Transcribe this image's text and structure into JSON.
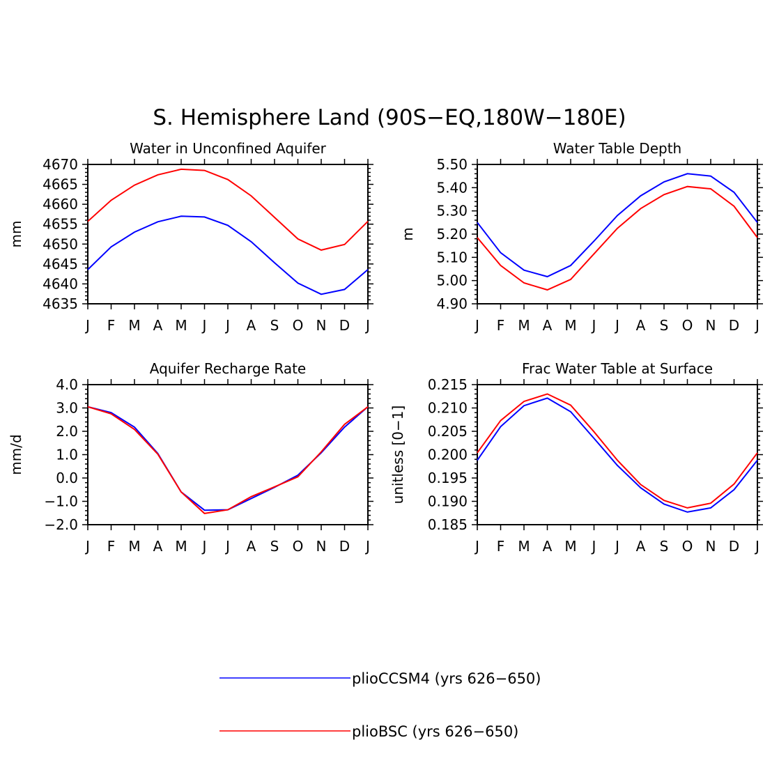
{
  "page_title": "S. Hemisphere Land (90S−EQ,180W−180E)",
  "legend": [
    {
      "label": "plioCCSM4 (yrs 626−650)",
      "color": "#0000ff"
    },
    {
      "label": "plioBSC (yrs 626−650)",
      "color": "#ff0000"
    }
  ],
  "chart_data": [
    {
      "type": "line",
      "title": "Water in Unconfined Aquifer",
      "ylabel": "mm",
      "xlabel": "",
      "categories": [
        "J",
        "F",
        "M",
        "A",
        "M",
        "J",
        "J",
        "A",
        "S",
        "O",
        "N",
        "D",
        "J"
      ],
      "ylim": [
        4635,
        4670
      ],
      "yticks": [
        4635,
        4640,
        4645,
        4650,
        4655,
        4660,
        4665,
        4670
      ],
      "ytick_labels": [
        "4635",
        "4640",
        "4645",
        "4650",
        "4655",
        "4660",
        "4665",
        "4670"
      ],
      "grid": false,
      "series": [
        {
          "color": "#0000ff",
          "values": [
            4643.6,
            4649.3,
            4653.0,
            4655.6,
            4657.0,
            4656.8,
            4654.7,
            4650.6,
            4645.3,
            4640.2,
            4637.4,
            4638.6,
            4643.6
          ]
        },
        {
          "color": "#ff0000",
          "values": [
            4655.7,
            4661.0,
            4664.8,
            4667.4,
            4668.8,
            4668.5,
            4666.2,
            4662.1,
            4656.7,
            4651.3,
            4648.5,
            4649.9,
            4655.7
          ]
        }
      ]
    },
    {
      "type": "line",
      "title": "Water Table Depth",
      "ylabel": "m",
      "xlabel": "",
      "categories": [
        "J",
        "F",
        "M",
        "A",
        "M",
        "J",
        "J",
        "A",
        "S",
        "O",
        "N",
        "D",
        "J"
      ],
      "ylim": [
        4.9,
        5.5
      ],
      "yticks": [
        4.9,
        5.0,
        5.1,
        5.2,
        5.3,
        5.4,
        5.5
      ],
      "ytick_labels": [
        "4.90",
        "5.00",
        "5.10",
        "5.20",
        "5.30",
        "5.40",
        "5.50"
      ],
      "grid": false,
      "series": [
        {
          "color": "#0000ff",
          "values": [
            5.25,
            5.12,
            5.045,
            5.017,
            5.065,
            5.17,
            5.28,
            5.365,
            5.425,
            5.46,
            5.45,
            5.38,
            5.25
          ]
        },
        {
          "color": "#ff0000",
          "values": [
            5.185,
            5.065,
            4.99,
            4.96,
            5.005,
            5.115,
            5.225,
            5.31,
            5.37,
            5.405,
            5.395,
            5.32,
            5.185
          ]
        }
      ]
    },
    {
      "type": "line",
      "title": "Aquifer Recharge Rate",
      "ylabel": "mm/d",
      "xlabel": "",
      "categories": [
        "J",
        "F",
        "M",
        "A",
        "M",
        "J",
        "J",
        "A",
        "S",
        "O",
        "N",
        "D",
        "J"
      ],
      "ylim": [
        -2.0,
        4.0
      ],
      "yticks": [
        -2.0,
        -1.0,
        0.0,
        1.0,
        2.0,
        3.0,
        4.0
      ],
      "ytick_labels": [
        "−2.0",
        "−1.0",
        "0.0",
        "1.0",
        "2.0",
        "3.0",
        "4.0"
      ],
      "grid": false,
      "series": [
        {
          "color": "#0000ff",
          "values": [
            3.05,
            2.8,
            2.18,
            1.05,
            -0.6,
            -1.38,
            -1.36,
            -0.88,
            -0.4,
            0.12,
            1.08,
            2.18,
            3.05
          ]
        },
        {
          "color": "#ff0000",
          "values": [
            3.05,
            2.75,
            2.08,
            1.02,
            -0.6,
            -1.52,
            -1.36,
            -0.8,
            -0.38,
            0.05,
            1.12,
            2.3,
            3.05
          ]
        }
      ]
    },
    {
      "type": "line",
      "title": "Frac Water Table at Surface",
      "ylabel": "unitless [0−1]",
      "xlabel": "",
      "categories": [
        "J",
        "F",
        "M",
        "A",
        "M",
        "J",
        "J",
        "A",
        "S",
        "O",
        "N",
        "D",
        "J"
      ],
      "ylim": [
        0.185,
        0.215
      ],
      "yticks": [
        0.185,
        0.19,
        0.195,
        0.2,
        0.205,
        0.21,
        0.215
      ],
      "ytick_labels": [
        "0.185",
        "0.190",
        "0.195",
        "0.200",
        "0.205",
        "0.210",
        "0.215"
      ],
      "grid": false,
      "series": [
        {
          "color": "#0000ff",
          "values": [
            0.1988,
            0.206,
            0.2105,
            0.2121,
            0.2092,
            0.2035,
            0.1977,
            0.1929,
            0.1894,
            0.1877,
            0.1886,
            0.1925,
            0.1988
          ]
        },
        {
          "color": "#ff0000",
          "values": [
            0.2004,
            0.2073,
            0.2114,
            0.213,
            0.2106,
            0.2049,
            0.1988,
            0.1936,
            0.1902,
            0.1886,
            0.1896,
            0.1937,
            0.2004
          ]
        }
      ]
    }
  ]
}
